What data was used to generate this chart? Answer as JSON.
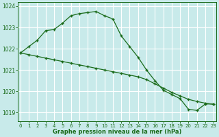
{
  "line1_x": [
    0,
    1,
    2,
    3,
    4,
    5,
    6,
    7,
    8,
    9,
    10,
    11,
    12,
    13,
    14,
    15,
    16,
    17,
    18,
    19,
    20,
    21,
    22,
    23
  ],
  "line1_y": [
    1021.8,
    1022.1,
    1022.4,
    1022.85,
    1022.9,
    1023.2,
    1023.55,
    1023.65,
    1023.7,
    1023.75,
    1023.55,
    1023.4,
    1022.6,
    1022.1,
    1021.6,
    1021.0,
    1020.5,
    1020.05,
    1019.85,
    1019.65,
    1019.15,
    1019.1,
    1019.4,
    1019.4
  ],
  "line2_x": [
    0,
    1,
    2,
    3,
    4,
    5,
    6,
    7,
    8,
    9,
    10,
    11,
    12,
    13,
    14,
    15,
    16,
    17,
    18,
    19,
    20,
    21,
    22,
    23
  ],
  "line2_y": [
    1021.8,
    1021.72,
    1021.64,
    1021.56,
    1021.48,
    1021.4,
    1021.32,
    1021.24,
    1021.16,
    1021.08,
    1021.0,
    1020.92,
    1020.84,
    1020.76,
    1020.68,
    1020.55,
    1020.35,
    1020.15,
    1019.95,
    1019.78,
    1019.62,
    1019.52,
    1019.44,
    1019.38
  ],
  "line_color": "#1a6b1a",
  "bg_color": "#c8eaea",
  "grid_color": "#ffffff",
  "xlabel": "Graphe pression niveau de la mer (hPa)",
  "xlabel_color": "#1a6b1a",
  "tick_color": "#1a6b1a",
  "ylim": [
    1018.6,
    1024.2
  ],
  "xlim": [
    -0.3,
    23.3
  ],
  "yticks": [
    1019,
    1020,
    1021,
    1022,
    1023,
    1024
  ],
  "xticks": [
    0,
    1,
    2,
    3,
    4,
    5,
    6,
    7,
    8,
    9,
    10,
    11,
    12,
    13,
    14,
    15,
    16,
    17,
    18,
    19,
    20,
    21,
    22,
    23
  ],
  "marker": "+"
}
